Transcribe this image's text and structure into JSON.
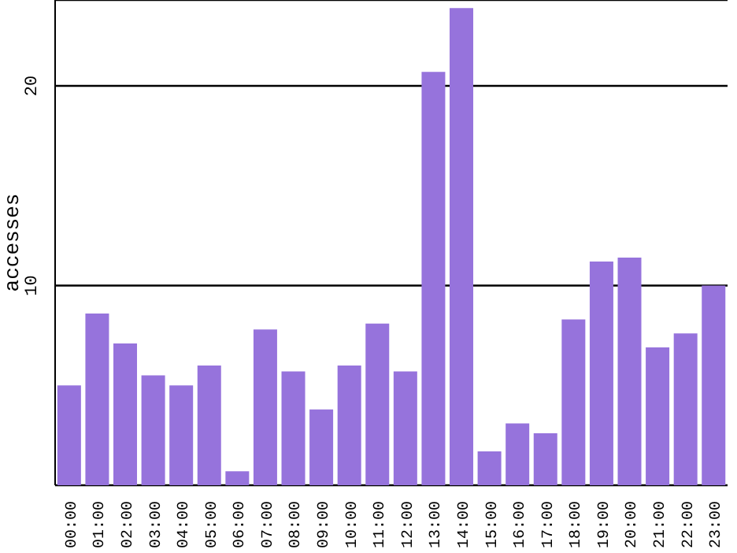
{
  "chart_data": {
    "type": "bar",
    "ylabel": "accesses",
    "categories": [
      "00:00",
      "01:00",
      "02:00",
      "03:00",
      "04:00",
      "05:00",
      "06:00",
      "07:00",
      "08:00",
      "09:00",
      "10:00",
      "11:00",
      "12:00",
      "13:00",
      "14:00",
      "15:00",
      "16:00",
      "17:00",
      "18:00",
      "19:00",
      "20:00",
      "21:00",
      "22:00",
      "23:00"
    ],
    "values": [
      5.0,
      8.6,
      7.1,
      5.5,
      5.0,
      6.0,
      0.7,
      7.8,
      5.7,
      3.8,
      6.0,
      8.1,
      5.7,
      20.7,
      23.9,
      1.7,
      3.1,
      2.6,
      8.3,
      11.2,
      11.4,
      6.9,
      7.6,
      10.0
    ],
    "color": "#9673dc",
    "ylim": [
      0,
      24.3
    ],
    "yticks": [
      10,
      20
    ],
    "grid": "y"
  }
}
